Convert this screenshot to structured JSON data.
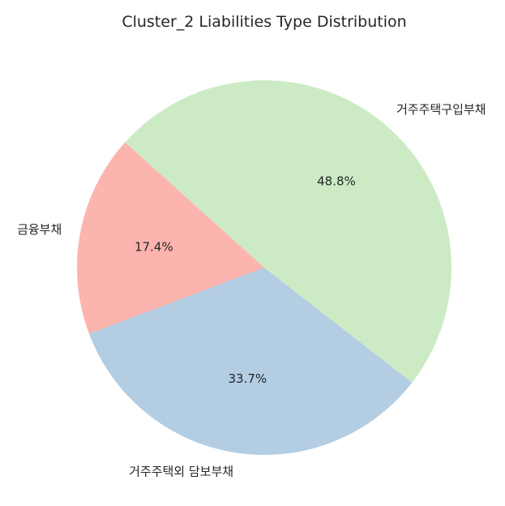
{
  "chart_data": {
    "type": "pie",
    "title": "Cluster_2 Liabilities Type Distribution",
    "slices": [
      {
        "label": "금융부채",
        "value": 17.4,
        "pct_label": "17.4%",
        "color": "#fbb4ae"
      },
      {
        "label": "거주주택외 담보부채",
        "value": 33.7,
        "pct_label": "33.7%",
        "color": "#b3cde3"
      },
      {
        "label": "거주주택구입부채",
        "value": 48.8,
        "pct_label": "48.8%",
        "color": "#ccebc5"
      }
    ],
    "start_angle_deg": 138,
    "direction": "counterclockwise"
  }
}
